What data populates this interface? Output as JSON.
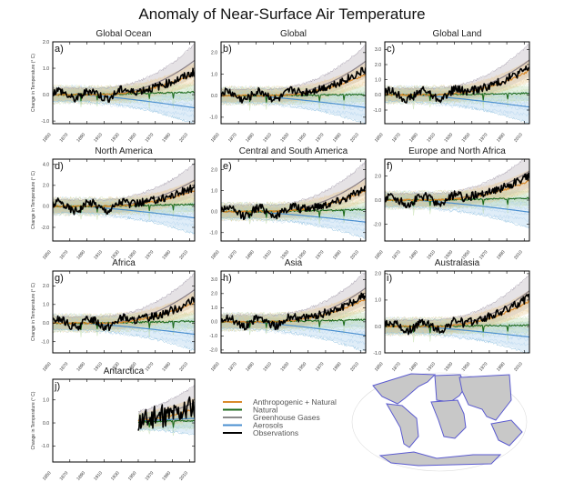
{
  "title": "Anomaly of Near-Surface Air Temperature",
  "chart_data": {
    "type": "line",
    "ylabel": "Change in Temperature (° C)",
    "x_ticks": [
      1850,
      1870,
      1890,
      1910,
      1930,
      1950,
      1970,
      1990,
      2010
    ],
    "xlim": [
      1850,
      2016
    ],
    "legend": {
      "placement": "bottom-center",
      "entries": [
        {
          "name": "Anthropogenic + Natural",
          "color": "#d98a2b"
        },
        {
          "name": "Natural",
          "color": "#1e6b1e"
        },
        {
          "name": "Greenhouse Gases",
          "color": "#8a8a8a"
        },
        {
          "name": "Aerosols",
          "color": "#4a8fd0"
        },
        {
          "name": "Observations",
          "color": "#000000"
        }
      ]
    },
    "panels": [
      {
        "id": "a)",
        "title": "Global Ocean",
        "ylim": [
          -1.1,
          2.0
        ],
        "yticks": [
          -1.0,
          0.0,
          1.0,
          2.0
        ],
        "start": 1850,
        "end_values": {
          "anthro_natural": 0.8,
          "natural": 0.1,
          "ghg": 1.3,
          "aerosols": -0.5,
          "obs": 0.85
        }
      },
      {
        "id": "b)",
        "title": "Global",
        "ylim": [
          -1.3,
          2.5
        ],
        "yticks": [
          -1.0,
          0.0,
          1.0,
          2.0
        ],
        "start": 1850,
        "end_values": {
          "anthro_natural": 1.0,
          "natural": 0.05,
          "ghg": 1.6,
          "aerosols": -0.55,
          "obs": 1.2
        }
      },
      {
        "id": "c)",
        "title": "Global Land",
        "ylim": [
          -1.9,
          3.5
        ],
        "yticks": [
          -1.0,
          0.0,
          1.0,
          2.0,
          3.0
        ],
        "start": 1850,
        "end_values": {
          "anthro_natural": 1.6,
          "natural": 0.1,
          "ghg": 2.3,
          "aerosols": -0.8,
          "obs": 1.8
        }
      },
      {
        "id": "d)",
        "title": "North America",
        "ylim": [
          -3.3,
          4.5
        ],
        "yticks": [
          -2.0,
          0.0,
          2.0,
          4.0
        ],
        "start": 1850,
        "end_values": {
          "anthro_natural": 1.5,
          "natural": 0.2,
          "ghg": 2.5,
          "aerosols": -1.1,
          "obs": 1.8
        }
      },
      {
        "id": "e)",
        "title": "Central and South America",
        "ylim": [
          -1.4,
          2.5
        ],
        "yticks": [
          -1.0,
          0.0,
          1.0,
          2.0
        ],
        "start": 1850,
        "end_values": {
          "anthro_natural": 1.0,
          "natural": 0.1,
          "ghg": 1.6,
          "aerosols": -0.5,
          "obs": 1.05
        }
      },
      {
        "id": "f)",
        "title": "Europe and North Africa",
        "ylim": [
          -3.4,
          3.4
        ],
        "yticks": [
          -2.0,
          0.0,
          2.0
        ],
        "start": 1850,
        "end_values": {
          "anthro_natural": 1.6,
          "natural": 0.15,
          "ghg": 2.4,
          "aerosols": -1.0,
          "obs": 2.0
        }
      },
      {
        "id": "g)",
        "title": "Africa",
        "ylim": [
          -1.6,
          2.8
        ],
        "yticks": [
          -1.0,
          0.0,
          1.0,
          2.0
        ],
        "start": 1850,
        "end_values": {
          "anthro_natural": 1.1,
          "natural": 0.1,
          "ghg": 1.8,
          "aerosols": -0.6,
          "obs": 1.2
        }
      },
      {
        "id": "h)",
        "title": "Asia",
        "ylim": [
          -2.2,
          3.6
        ],
        "yticks": [
          -2.0,
          -1.0,
          0.0,
          1.0,
          2.0,
          3.0
        ],
        "start": 1850,
        "end_values": {
          "anthro_natural": 1.6,
          "natural": 0.15,
          "ghg": 2.4,
          "aerosols": -0.95,
          "obs": 1.9
        }
      },
      {
        "id": "i)",
        "title": "Australasia",
        "ylim": [
          -1.0,
          2.1
        ],
        "yticks": [
          -1.0,
          0.0,
          1.0,
          2.0
        ],
        "start": 1850,
        "end_values": {
          "anthro_natural": 0.95,
          "natural": 0.05,
          "ghg": 1.35,
          "aerosols": -0.4,
          "obs": 1.1
        }
      },
      {
        "id": "j)",
        "title": "Antarctica",
        "ylim": [
          -1.7,
          1.9
        ],
        "yticks": [
          -1.0,
          0.0,
          1.0
        ],
        "start": 1950,
        "end_values": {
          "anthro_natural": 0.6,
          "natural": 0.1,
          "ghg": 0.9,
          "aerosols": 0.2,
          "obs": 0.7
        }
      }
    ]
  },
  "map": {
    "name": "region-map",
    "description": "World map with region outlines"
  }
}
